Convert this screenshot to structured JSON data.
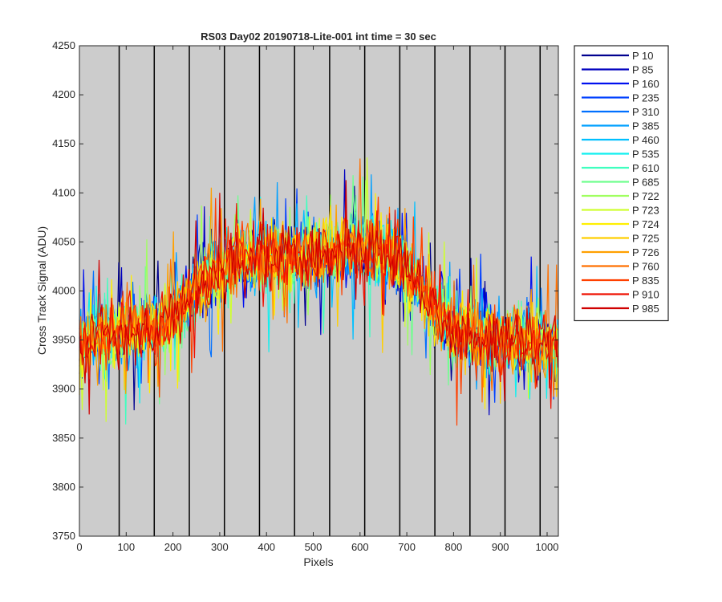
{
  "chart_data": {
    "type": "line",
    "title": "RS03 Day02 20190718-Lite-001 int time = 30 sec",
    "xlabel": "Pixels",
    "ylabel": "Cross Track Signal (ADU)",
    "xlim": [
      0,
      1024
    ],
    "ylim": [
      3750,
      4250
    ],
    "xticks": [
      0,
      100,
      200,
      300,
      400,
      500,
      600,
      700,
      800,
      900,
      1000
    ],
    "yticks": [
      3750,
      3800,
      3850,
      3900,
      3950,
      4000,
      4050,
      4100,
      4150,
      4200,
      4250
    ],
    "grid": false,
    "background": "#cccccc",
    "legend_position": "outside-right",
    "vertical_lines": [
      85,
      160,
      235,
      310,
      385,
      460,
      535,
      610,
      685,
      760,
      835,
      910,
      985
    ],
    "profile": {
      "x": [
        0,
        40,
        80,
        120,
        160,
        200,
        240,
        280,
        320,
        360,
        400,
        440,
        480,
        520,
        560,
        600,
        640,
        680,
        720,
        760,
        800,
        840,
        880,
        920,
        960,
        1000,
        1023
      ],
      "mean": [
        3945,
        3955,
        3958,
        3960,
        3965,
        3975,
        3995,
        4015,
        4028,
        4032,
        4033,
        4034,
        4036,
        4040,
        4042,
        4043,
        4040,
        4030,
        4010,
        3980,
        3960,
        3955,
        3950,
        3950,
        3948,
        3946,
        3945
      ],
      "noise_range": 48
    },
    "series": [
      {
        "name": "P 10",
        "color": "#00008f"
      },
      {
        "name": "P 85",
        "color": "#0000bf"
      },
      {
        "name": "P 160",
        "color": "#0010ef"
      },
      {
        "name": "P 235",
        "color": "#0040ff"
      },
      {
        "name": "P 310",
        "color": "#0070ff"
      },
      {
        "name": "P 385",
        "color": "#00a0ff"
      },
      {
        "name": "P 460",
        "color": "#00c0ff"
      },
      {
        "name": "P 535",
        "color": "#10efef"
      },
      {
        "name": "P 610",
        "color": "#40ffbf"
      },
      {
        "name": "P 685",
        "color": "#70ff8f"
      },
      {
        "name": "P 722",
        "color": "#a0ff60"
      },
      {
        "name": "P 723",
        "color": "#cfff30"
      },
      {
        "name": "P 724",
        "color": "#ffef00"
      },
      {
        "name": "P 725",
        "color": "#ffcf00"
      },
      {
        "name": "P 726",
        "color": "#ffa000"
      },
      {
        "name": "P 760",
        "color": "#ff7000"
      },
      {
        "name": "P 835",
        "color": "#ff4000"
      },
      {
        "name": "P 910",
        "color": "#ef1000"
      },
      {
        "name": "P 985",
        "color": "#cf0000"
      }
    ]
  }
}
